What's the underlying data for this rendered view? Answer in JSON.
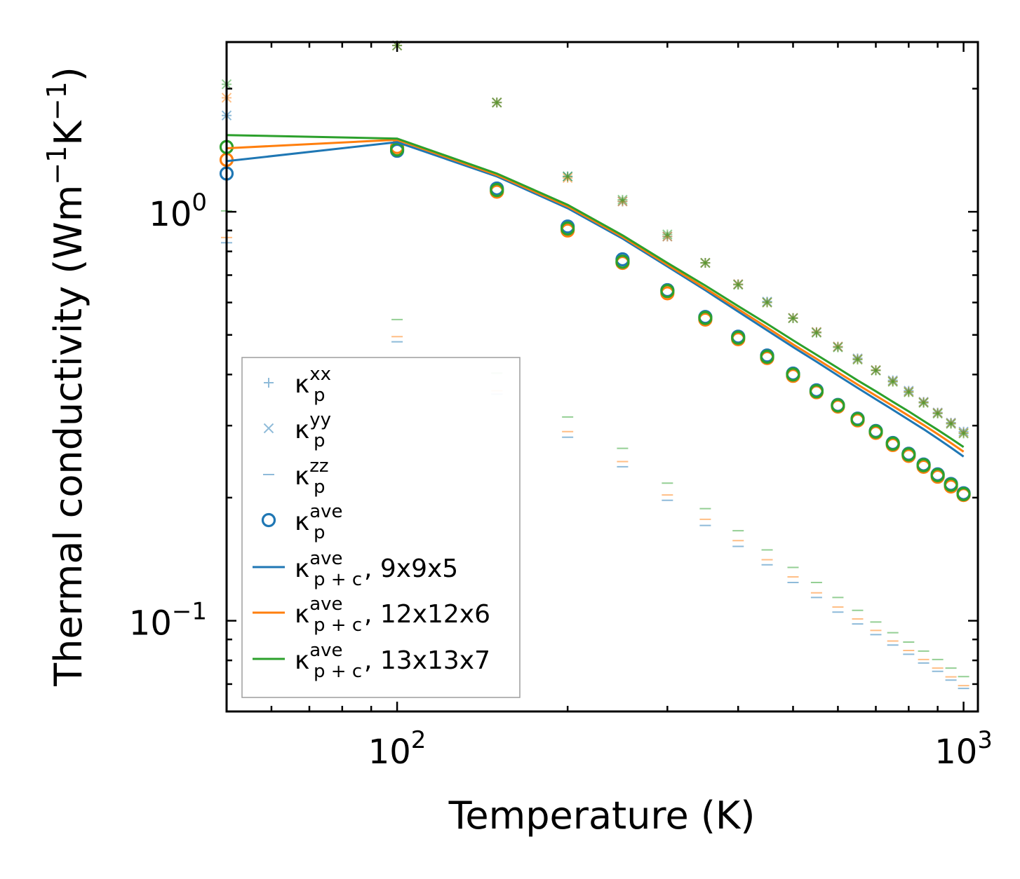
{
  "chart_data": {
    "type": "scatter",
    "xscale": "log",
    "yscale": "log",
    "xlim": [
      50,
      1060
    ],
    "ylim": [
      0.06,
      2.6
    ],
    "xlabel": "Temperature (K)",
    "ylabel": {
      "main": "Thermal conductivity (Wm",
      "sup1": "−1",
      "mid": "K",
      "sup2": "−1",
      "close": ")"
    },
    "x_ticks": [
      {
        "value": 100,
        "base": "10",
        "exp": "2"
      },
      {
        "value": 1000,
        "base": "10",
        "exp": "3"
      }
    ],
    "y_ticks": [
      {
        "value": 1.0,
        "base": "10",
        "exp": "0"
      },
      {
        "value": 0.1,
        "base": "10",
        "exp": "−1"
      }
    ],
    "temperatures": [
      50,
      100,
      150,
      200,
      250,
      300,
      350,
      400,
      450,
      500,
      550,
      600,
      650,
      700,
      750,
      800,
      850,
      900,
      950,
      1000
    ],
    "colors": {
      "blue": "#1f77b4",
      "orange": "#ff7f0e",
      "green": "#2ca02c"
    },
    "series": [
      {
        "name": "9x9x5",
        "color": "#1f77b4",
        "xx": [
          1.72,
          2.55,
          1.85,
          1.22,
          1.06,
          0.87,
          0.75,
          0.665,
          0.603,
          0.55,
          0.508,
          0.468,
          0.438,
          0.41,
          0.387,
          0.365,
          0.343,
          0.323,
          0.305,
          0.29
        ],
        "yy": [
          1.72,
          2.55,
          1.85,
          1.22,
          1.06,
          0.87,
          0.75,
          0.665,
          0.603,
          0.55,
          0.508,
          0.468,
          0.438,
          0.41,
          0.387,
          0.365,
          0.343,
          0.323,
          0.305,
          0.29
        ],
        "zz": [
          0.84,
          0.481,
          0.358,
          0.281,
          0.238,
          0.197,
          0.171,
          0.152,
          0.137,
          0.124,
          0.114,
          0.105,
          0.0982,
          0.0925,
          0.0872,
          0.0828,
          0.0788,
          0.0752,
          0.0716,
          0.0683
        ],
        "ave": [
          1.24,
          1.41,
          1.14,
          0.92,
          0.765,
          0.643,
          0.553,
          0.495,
          0.445,
          0.402,
          0.366,
          0.337,
          0.312,
          0.291,
          0.272,
          0.256,
          0.241,
          0.228,
          0.216,
          0.205
        ],
        "line": [
          1.33,
          1.48,
          1.22,
          1.02,
          0.86,
          0.735,
          0.643,
          0.57,
          0.513,
          0.467,
          0.43,
          0.398,
          0.371,
          0.348,
          0.328,
          0.31,
          0.294,
          0.279,
          0.265,
          0.252
        ]
      },
      {
        "name": "12x12x6",
        "color": "#ff7f0e",
        "xx": [
          1.9,
          2.55,
          1.85,
          1.21,
          1.06,
          0.87,
          0.75,
          0.665,
          0.6,
          0.55,
          0.508,
          0.468,
          0.436,
          0.41,
          0.385,
          0.363,
          0.342,
          0.322,
          0.304,
          0.288
        ],
        "yy": [
          1.9,
          2.55,
          1.85,
          1.21,
          1.06,
          0.87,
          0.75,
          0.665,
          0.6,
          0.55,
          0.508,
          0.468,
          0.436,
          0.41,
          0.385,
          0.363,
          0.342,
          0.322,
          0.304,
          0.288
        ],
        "zz": [
          0.865,
          0.495,
          0.365,
          0.29,
          0.245,
          0.203,
          0.177,
          0.157,
          0.141,
          0.128,
          0.117,
          0.108,
          0.101,
          0.0947,
          0.0892,
          0.0846,
          0.0804,
          0.0766,
          0.0729,
          0.0694
        ],
        "ave": [
          1.34,
          1.44,
          1.12,
          0.9,
          0.75,
          0.632,
          0.545,
          0.488,
          0.439,
          0.397,
          0.362,
          0.334,
          0.309,
          0.288,
          0.269,
          0.253,
          0.238,
          0.225,
          0.213,
          0.203
        ],
        "line": [
          1.43,
          1.5,
          1.23,
          1.03,
          0.868,
          0.742,
          0.65,
          0.578,
          0.521,
          0.474,
          0.437,
          0.405,
          0.378,
          0.355,
          0.335,
          0.317,
          0.301,
          0.286,
          0.272,
          0.259
        ]
      },
      {
        "name": "13x13x7",
        "color": "#2ca02c",
        "xx": [
          2.05,
          2.55,
          1.85,
          1.22,
          1.07,
          0.88,
          0.75,
          0.663,
          0.6,
          0.549,
          0.506,
          0.466,
          0.435,
          0.409,
          0.384,
          0.362,
          0.341,
          0.321,
          0.303,
          0.287
        ],
        "yy": [
          2.05,
          2.55,
          1.85,
          1.22,
          1.07,
          0.88,
          0.75,
          0.663,
          0.6,
          0.549,
          0.506,
          0.466,
          0.435,
          0.409,
          0.384,
          0.362,
          0.341,
          0.321,
          0.303,
          0.287
        ],
        "zz": [
          1.005,
          0.545,
          0.403,
          0.315,
          0.264,
          0.217,
          0.188,
          0.166,
          0.149,
          0.135,
          0.124,
          0.114,
          0.106,
          0.0993,
          0.0935,
          0.0887,
          0.0843,
          0.0804,
          0.0766,
          0.073
        ],
        "ave": [
          1.44,
          1.42,
          1.13,
          0.91,
          0.755,
          0.64,
          0.55,
          0.492,
          0.442,
          0.4,
          0.364,
          0.336,
          0.311,
          0.29,
          0.271,
          0.255,
          0.24,
          0.227,
          0.215,
          0.204
        ],
        "line": [
          1.54,
          1.51,
          1.24,
          1.04,
          0.876,
          0.75,
          0.66,
          0.588,
          0.532,
          0.485,
          0.447,
          0.415,
          0.387,
          0.364,
          0.343,
          0.325,
          0.308,
          0.293,
          0.279,
          0.266
        ]
      }
    ],
    "legend": {
      "placement": "lower-left",
      "entries": [
        {
          "marker": "plus",
          "symbol": "κ",
          "sub": "p",
          "sup": "xx",
          "suffix": ""
        },
        {
          "marker": "x",
          "symbol": "κ",
          "sub": "p",
          "sup": "yy",
          "suffix": ""
        },
        {
          "marker": "dash",
          "symbol": "κ",
          "sub": "p",
          "sup": "zz",
          "suffix": ""
        },
        {
          "marker": "circle",
          "symbol": "κ",
          "sub": "p",
          "sup": "ave",
          "suffix": ""
        },
        {
          "marker": "line-blue",
          "symbol": "κ",
          "sub": "p + c",
          "sup": "ave",
          "suffix": ", 9x9x5"
        },
        {
          "marker": "line-orange",
          "symbol": "κ",
          "sub": "p + c",
          "sup": "ave",
          "suffix": ", 12x12x6"
        },
        {
          "marker": "line-green",
          "symbol": "κ",
          "sub": "p + c",
          "sup": "ave",
          "suffix": ", 13x13x7"
        }
      ]
    }
  }
}
